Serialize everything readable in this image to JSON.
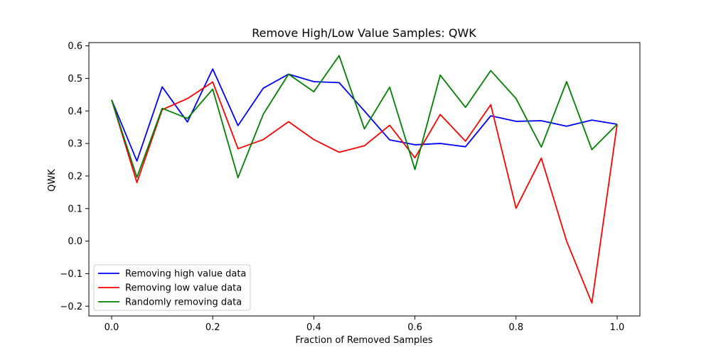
{
  "chart_data": {
    "type": "line",
    "title": "Remove High/Low Value Samples: QWK",
    "xlabel": "Fraction of Removed Samples",
    "ylabel": "QWK",
    "xlim": [
      -0.045,
      1.045
    ],
    "ylim": [
      -0.23,
      0.61
    ],
    "xticks": [
      0.0,
      0.2,
      0.4,
      0.6,
      0.8,
      1.0
    ],
    "xtick_labels": [
      "0.0",
      "0.2",
      "0.4",
      "0.6",
      "0.8",
      "1.0"
    ],
    "yticks": [
      -0.2,
      -0.1,
      0.0,
      0.1,
      0.2,
      0.3,
      0.4,
      0.5,
      0.6
    ],
    "ytick_labels": [
      "−0.2",
      "−0.1",
      "0.0",
      "0.1",
      "0.2",
      "0.3",
      "0.4",
      "0.5",
      "0.6"
    ],
    "grid": false,
    "legend_position": "lower-left",
    "x": [
      0.0,
      0.05,
      0.1,
      0.15,
      0.2,
      0.25,
      0.3,
      0.35,
      0.4,
      0.45,
      0.5,
      0.55,
      0.6,
      0.65,
      0.7,
      0.75,
      0.8,
      0.85,
      0.9,
      0.95,
      1.0
    ],
    "series": [
      {
        "name": "Removing high value data",
        "color": "#0000ff",
        "values": [
          0.434,
          0.246,
          0.474,
          0.366,
          0.529,
          0.355,
          0.47,
          0.513,
          0.49,
          0.487,
          0.4,
          0.311,
          0.296,
          0.3,
          0.29,
          0.385,
          0.368,
          0.37,
          0.353,
          0.372,
          0.359
        ]
      },
      {
        "name": "Removing low value data",
        "color": "#ff0000",
        "values": [
          0.434,
          0.18,
          0.404,
          0.438,
          0.489,
          0.284,
          0.312,
          0.367,
          0.312,
          0.273,
          0.293,
          0.356,
          0.256,
          0.389,
          0.307,
          0.419,
          0.101,
          0.255,
          0.0,
          -0.19,
          0.359
        ]
      },
      {
        "name": "Randomly removing data",
        "color": "#008000",
        "values": [
          0.434,
          0.196,
          0.408,
          0.377,
          0.467,
          0.195,
          0.39,
          0.513,
          0.459,
          0.57,
          0.345,
          0.473,
          0.22,
          0.51,
          0.411,
          0.524,
          0.438,
          0.289,
          0.49,
          0.281,
          0.359
        ]
      }
    ]
  }
}
